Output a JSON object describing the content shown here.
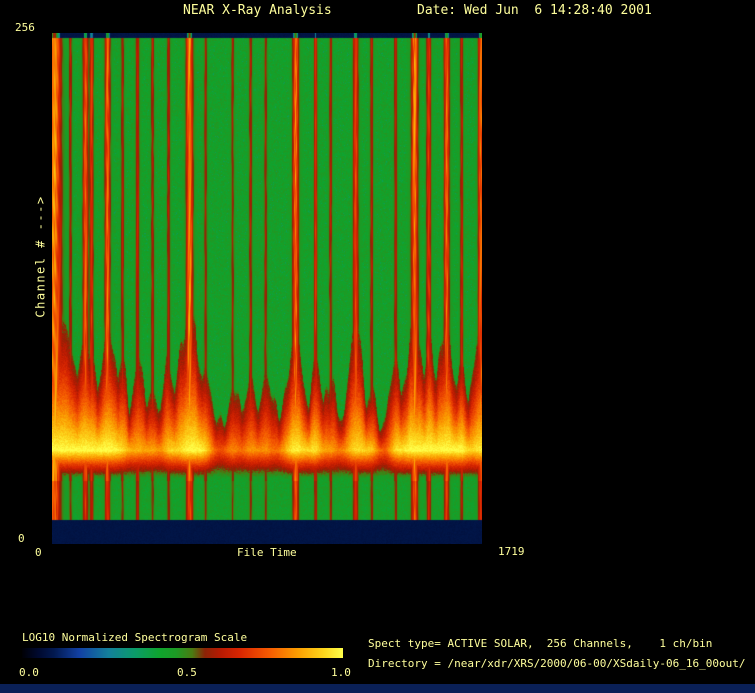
{
  "window": {
    "bg": "#000000",
    "text_color": "#ffff9c",
    "no_data_color": "#02194f",
    "bottom_strip_color": "#0a2057"
  },
  "header": {
    "title": "NEAR X-Ray Analysis",
    "date": "Date: Wed Jun  6 14:28:40 2001"
  },
  "plot": {
    "ylabel": "Channel # --->",
    "y_top_label": "256",
    "y_bottom_label": "0",
    "x_left_label": "0",
    "xlabel": "File Time",
    "x_right_label": "1719"
  },
  "colorbar": {
    "label": "LOG10 Normalized Spectrogram Scale",
    "ticks": [
      "0.0",
      "0.5",
      "1.0"
    ]
  },
  "info": {
    "spect_line": "Spect type= ACTIVE SOLAR,  256 Channels,    1 ch/bin",
    "directory_line": "Directory = /near/xdr/XRS/2000/06-00/XSdaily-06_16_00out/"
  },
  "chart_data": {
    "type": "heatmap",
    "title": "NEAR X-Ray Analysis",
    "xlabel": "File Time",
    "ylabel": "Channel #",
    "xlim": [
      0,
      1719
    ],
    "ylim": [
      0,
      256
    ],
    "colorbar": {
      "label": "LOG10 Normalized Spectrogram Scale",
      "range": [
        0.0,
        1.0
      ]
    },
    "background_level": 0.455,
    "no_data_level": 0.085,
    "no_data_channel_bands": [
      [
        0,
        12
      ],
      [
        253,
        256
      ]
    ],
    "low_channel_band": {
      "center_channel": 48,
      "peak_level_base": 0.72,
      "peak_level_max": 1.0,
      "top_channel_quiet": 66,
      "top_channel_flare": 130
    },
    "flare_events": [
      {
        "t": 8,
        "s": 1.0,
        "sigma": 20
      },
      {
        "t": 72,
        "s": 0.45,
        "sigma": 5
      },
      {
        "t": 132,
        "s": 0.85,
        "sigma": 8
      },
      {
        "t": 156,
        "s": 0.7,
        "sigma": 6
      },
      {
        "t": 220,
        "s": 0.9,
        "sigma": 8
      },
      {
        "t": 280,
        "s": 0.45,
        "sigma": 5
      },
      {
        "t": 340,
        "s": 0.55,
        "sigma": 6
      },
      {
        "t": 400,
        "s": 0.45,
        "sigma": 5
      },
      {
        "t": 464,
        "s": 0.5,
        "sigma": 5
      },
      {
        "t": 548,
        "s": 1.0,
        "sigma": 10
      },
      {
        "t": 612,
        "s": 0.4,
        "sigma": 5
      },
      {
        "t": 720,
        "s": 0.4,
        "sigma": 5
      },
      {
        "t": 792,
        "s": 0.45,
        "sigma": 5
      },
      {
        "t": 852,
        "s": 0.4,
        "sigma": 5
      },
      {
        "t": 972,
        "s": 0.95,
        "sigma": 9
      },
      {
        "t": 1052,
        "s": 0.65,
        "sigma": 5
      },
      {
        "t": 1112,
        "s": 0.45,
        "sigma": 5
      },
      {
        "t": 1212,
        "s": 0.8,
        "sigma": 8
      },
      {
        "t": 1276,
        "s": 0.5,
        "sigma": 5
      },
      {
        "t": 1372,
        "s": 0.5,
        "sigma": 5
      },
      {
        "t": 1448,
        "s": 1.0,
        "sigma": 10
      },
      {
        "t": 1504,
        "s": 0.7,
        "sigma": 7
      },
      {
        "t": 1576,
        "s": 0.9,
        "sigma": 8
      },
      {
        "t": 1636,
        "s": 0.55,
        "sigma": 5
      },
      {
        "t": 1712,
        "s": 0.9,
        "sigma": 8
      }
    ],
    "palette_stops": [
      [
        0.0,
        "#000005"
      ],
      [
        0.05,
        "#00092e"
      ],
      [
        0.1,
        "#02194f"
      ],
      [
        0.18,
        "#1241a5"
      ],
      [
        0.27,
        "#13809b"
      ],
      [
        0.35,
        "#0b9b6b"
      ],
      [
        0.43,
        "#0fa42d"
      ],
      [
        0.48,
        "#1d9b25"
      ],
      [
        0.53,
        "#497c12"
      ],
      [
        0.57,
        "#8c2306"
      ],
      [
        0.62,
        "#b81a02"
      ],
      [
        0.68,
        "#d92601"
      ],
      [
        0.77,
        "#f55a01"
      ],
      [
        0.86,
        "#fb9e01"
      ],
      [
        0.94,
        "#fdd61c"
      ],
      [
        1.0,
        "#ffff4a"
      ]
    ]
  }
}
